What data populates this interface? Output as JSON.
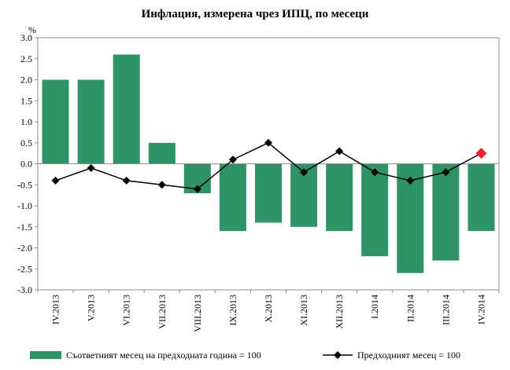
{
  "chart_data": {
    "type": "bar",
    "title": "Инфлация, измерена чрез ИПЦ, по месеци",
    "ylabel": "%",
    "ylim": [
      -3.0,
      3.0
    ],
    "ytick_step": 0.5,
    "yticks": [
      "3.0",
      "2.5",
      "2.0",
      "1.5",
      "1.0",
      "0.5",
      "0.0",
      "-0.5",
      "-1.0",
      "-1.5",
      "-2.0",
      "-2.5",
      "-3.0"
    ],
    "grid": false,
    "legend_position": "bottom",
    "categories": [
      "IV.2013",
      "V.2013",
      "VI.2013",
      "VII.2013",
      "VIII.2013",
      "IX.2013",
      "X.2013",
      "XI.2013",
      "XII.2013",
      "I.2014",
      "II.2014",
      "III.2014",
      "IV.2014"
    ],
    "series": [
      {
        "name": "Съответният месец на предходната година = 100",
        "type": "bar",
        "color": "#2e9468",
        "values": [
          2.0,
          2.0,
          2.6,
          0.5,
          -0.7,
          -1.6,
          -1.4,
          -1.5,
          -1.6,
          -2.2,
          -2.6,
          -2.3,
          -1.6
        ]
      },
      {
        "name": "Предходният месец = 100",
        "type": "line",
        "color": "#000000",
        "highlight_last_color": "#e8242a",
        "values": [
          -0.4,
          -0.1,
          -0.4,
          -0.5,
          -0.6,
          0.1,
          0.5,
          -0.2,
          0.3,
          -0.2,
          -0.4,
          -0.2,
          0.25
        ]
      }
    ]
  }
}
